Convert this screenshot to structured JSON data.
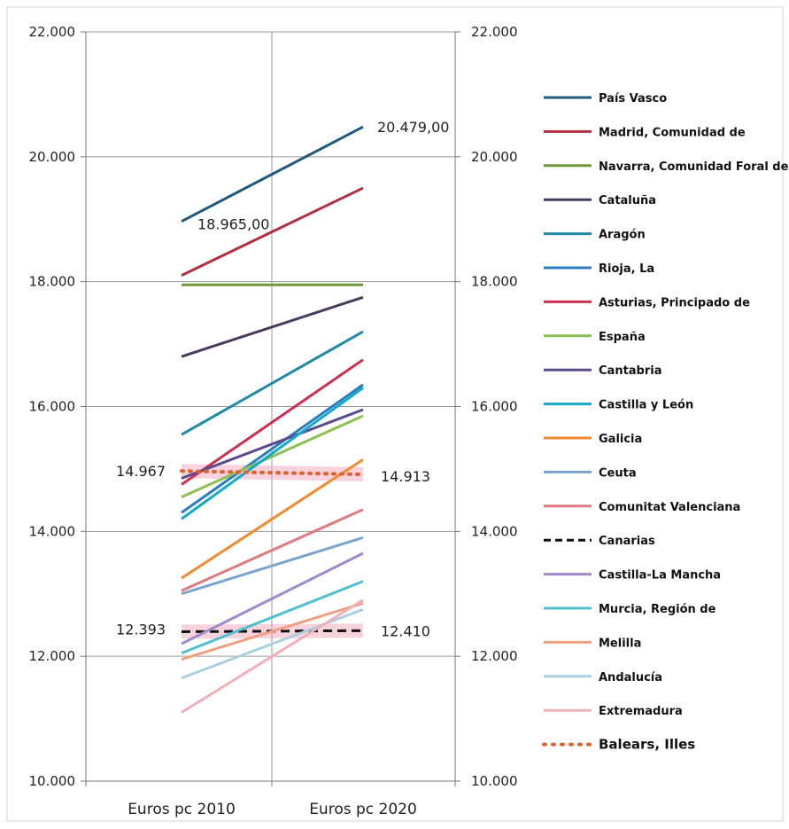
{
  "chart_data": {
    "type": "line",
    "categories": [
      "Euros pc 2010",
      "Euros pc 2020"
    ],
    "ylim": [
      10000,
      22000
    ],
    "y_ticks": [
      "10.000",
      "12.000",
      "14.000",
      "16.000",
      "18.000",
      "20.000",
      "22.000"
    ],
    "y_tick_values": [
      10000,
      12000,
      14000,
      16000,
      18000,
      20000,
      22000
    ],
    "grid": true,
    "legend_position": "right",
    "series": [
      {
        "name": "País Vasco",
        "values": [
          18965,
          20479
        ],
        "color": "#1f5a7a",
        "style": "solid"
      },
      {
        "name": "Madrid, Comunidad de",
        "values": [
          18100,
          19500
        ],
        "color": "#b03040",
        "style": "solid"
      },
      {
        "name": "Navarra, Comunidad Foral de",
        "values": [
          17950,
          17950
        ],
        "color": "#6e9a3a",
        "style": "solid"
      },
      {
        "name": "Cataluña",
        "values": [
          16800,
          17750
        ],
        "color": "#4a3a5e",
        "style": "solid"
      },
      {
        "name": "Aragón",
        "values": [
          15550,
          17200
        ],
        "color": "#1f8aa5",
        "style": "solid"
      },
      {
        "name": "Rioja, La",
        "values": [
          14300,
          16350
        ],
        "color": "#2a7ec0",
        "style": "solid"
      },
      {
        "name": "Asturias, Principado de",
        "values": [
          14750,
          16750
        ],
        "color": "#cc3050",
        "style": "solid"
      },
      {
        "name": "España",
        "values": [
          14550,
          15850
        ],
        "color": "#8cc050",
        "style": "solid"
      },
      {
        "name": "Cantabria",
        "values": [
          14850,
          15950
        ],
        "color": "#5a4a8e",
        "style": "solid"
      },
      {
        "name": "Castilla y León",
        "values": [
          14200,
          16300
        ],
        "color": "#12aac8",
        "style": "solid"
      },
      {
        "name": "Galicia",
        "values": [
          13250,
          15150
        ],
        "color": "#f08a30",
        "style": "solid"
      },
      {
        "name": "Ceuta",
        "values": [
          13000,
          13900
        ],
        "color": "#7aa4cc",
        "style": "solid"
      },
      {
        "name": "Comunitat Valenciana",
        "values": [
          13050,
          14350
        ],
        "color": "#e07a80",
        "style": "solid"
      },
      {
        "name": "Canarias",
        "values": [
          12393,
          12410
        ],
        "color": "#111111",
        "style": "dashed"
      },
      {
        "name": "Castilla-La Mancha",
        "values": [
          12200,
          13650
        ],
        "color": "#a08ac8",
        "style": "solid"
      },
      {
        "name": "Murcia, Región de",
        "values": [
          12050,
          13200
        ],
        "color": "#50c0d0",
        "style": "solid"
      },
      {
        "name": "Melilla",
        "values": [
          11950,
          12850
        ],
        "color": "#f0a080",
        "style": "solid"
      },
      {
        "name": "Andalucía",
        "values": [
          11650,
          12750
        ],
        "color": "#a8d0e0",
        "style": "solid"
      },
      {
        "name": "Extremadura",
        "values": [
          11100,
          12900
        ],
        "color": "#f0b0b8",
        "style": "solid"
      },
      {
        "name": "Balears, Illes",
        "values": [
          14967,
          14913
        ],
        "color": "#e06030",
        "style": "dotted"
      }
    ],
    "annotations": [
      {
        "text": "18.965,00",
        "series": "País Vasco",
        "point": 0
      },
      {
        "text": "20.479,00",
        "series": "País Vasco",
        "point": 1
      },
      {
        "text": "14.967",
        "series": "Balears, Illes",
        "point": 0
      },
      {
        "text": "14.913",
        "series": "Balears, Illes",
        "point": 1
      },
      {
        "text": "12.393",
        "series": "Canarias",
        "point": 0
      },
      {
        "text": "12.410",
        "series": "Canarias",
        "point": 1
      }
    ]
  }
}
